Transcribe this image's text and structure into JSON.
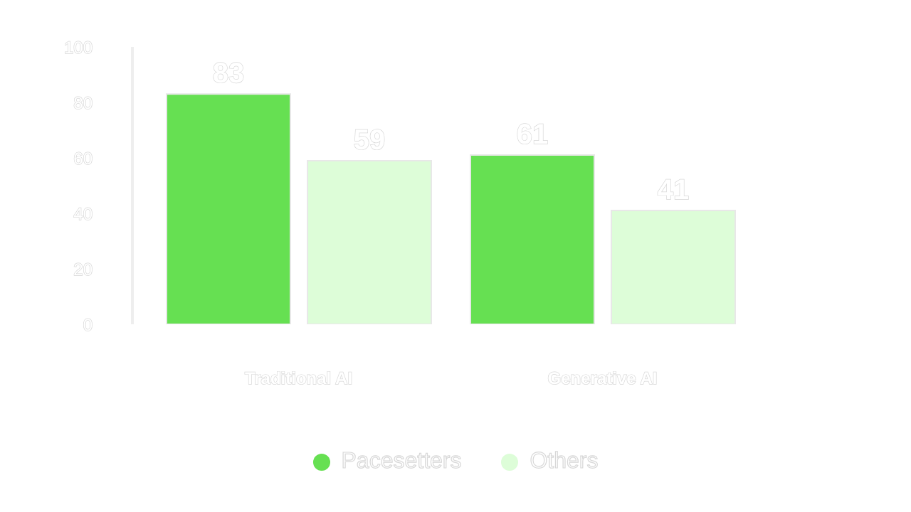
{
  "chart_data": {
    "type": "bar",
    "categories": [
      "Traditional AI",
      "Generative AI"
    ],
    "series": [
      {
        "name": "Pacesetters",
        "color": "#66e052",
        "values": [
          83,
          61
        ]
      },
      {
        "name": "Others",
        "color": "#ddfdd8",
        "values": [
          59,
          41
        ]
      }
    ],
    "ylim": [
      0,
      100
    ],
    "yticks": [
      0,
      20,
      40,
      60,
      80,
      100
    ],
    "data_labels": true,
    "legend": "bottom"
  }
}
